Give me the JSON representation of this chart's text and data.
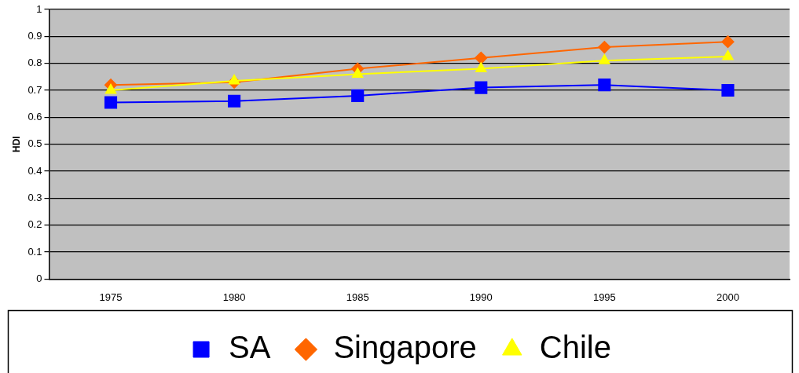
{
  "chart_data": {
    "type": "line",
    "ylabel": "HDI",
    "categories": [
      "1975",
      "1980",
      "1985",
      "1990",
      "1995",
      "2000"
    ],
    "series": [
      {
        "name": "SA",
        "color": "#0000ff",
        "marker": "square",
        "values": [
          0.655,
          0.66,
          0.68,
          0.71,
          0.72,
          0.7
        ]
      },
      {
        "name": "Singapore",
        "color": "#ff6600",
        "marker": "diamond",
        "values": [
          0.72,
          0.73,
          0.78,
          0.82,
          0.86,
          0.88
        ]
      },
      {
        "name": "Chile",
        "color": "#ffff00",
        "marker": "triangle",
        "values": [
          0.7,
          0.735,
          0.76,
          0.78,
          0.81,
          0.825
        ]
      }
    ],
    "ylim": [
      0,
      1
    ],
    "yticks": [
      0,
      0.1,
      0.2,
      0.3,
      0.4,
      0.5,
      0.6,
      0.7,
      0.8,
      0.9,
      1
    ],
    "grid": "y",
    "legend": "bottom"
  }
}
